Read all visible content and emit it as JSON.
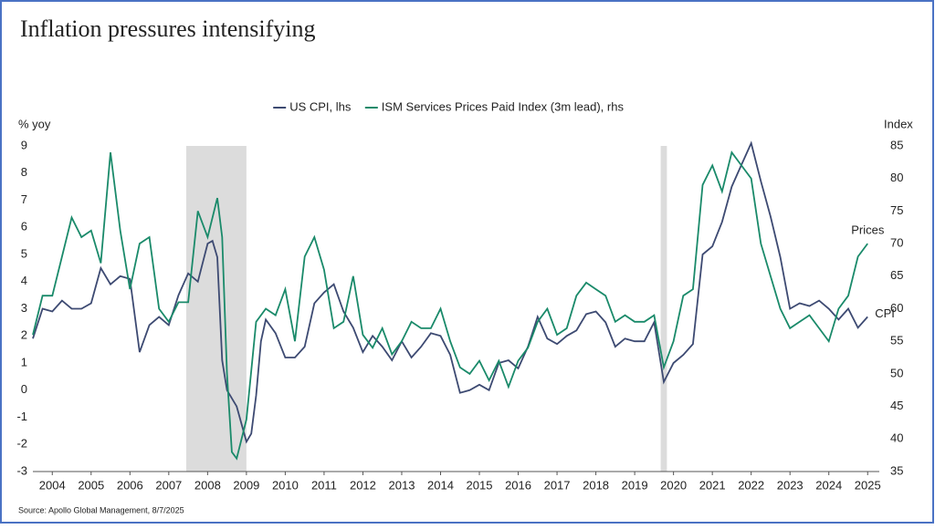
{
  "chart_data": {
    "type": "line",
    "title": "Inflation pressures intensifying",
    "legend": "top",
    "y_label": "% yoy",
    "y2_label": "Index",
    "source": "Source: Apollo Global Management, 8/7/2025",
    "annotations": [
      {
        "text": "Prices",
        "series": 1
      },
      {
        "text": "CPI",
        "series": 0
      }
    ],
    "shaded_periods": [
      [
        2007.95,
        2009.5
      ],
      [
        2020.17,
        2020.33
      ]
    ],
    "xlim": [
      2004,
      2025.8
    ],
    "xticks": [
      {
        "value": 2004.5,
        "label": "2004"
      },
      {
        "value": 2005.5,
        "label": "2005"
      },
      {
        "value": 2006.5,
        "label": "2006"
      },
      {
        "value": 2007.5,
        "label": "2007"
      },
      {
        "value": 2008.5,
        "label": "2008"
      },
      {
        "value": 2009.5,
        "label": "2009"
      },
      {
        "value": 2010.5,
        "label": "2010"
      },
      {
        "value": 2011.5,
        "label": "2011"
      },
      {
        "value": 2012.5,
        "label": "2012"
      },
      {
        "value": 2013.5,
        "label": "2013"
      },
      {
        "value": 2014.5,
        "label": "2014"
      },
      {
        "value": 2015.5,
        "label": "2015"
      },
      {
        "value": 2016.5,
        "label": "2016"
      },
      {
        "value": 2017.5,
        "label": "2017"
      },
      {
        "value": 2018.5,
        "label": "2018"
      },
      {
        "value": 2019.5,
        "label": "2019"
      },
      {
        "value": 2020.5,
        "label": "2020"
      },
      {
        "value": 2021.5,
        "label": "2021"
      },
      {
        "value": 2022.5,
        "label": "2022"
      },
      {
        "value": 2023.5,
        "label": "2023"
      },
      {
        "value": 2024.5,
        "label": "2024"
      },
      {
        "value": 2025.5,
        "label": "2025"
      }
    ],
    "ylim": [
      -3,
      9
    ],
    "yticks": [
      -3,
      -2,
      -1,
      0,
      1,
      2,
      3,
      4,
      5,
      6,
      7,
      8,
      9
    ],
    "y2lim": [
      35,
      85
    ],
    "y2ticks": [
      35,
      40,
      45,
      50,
      55,
      60,
      65,
      70,
      75,
      80,
      85
    ],
    "series": [
      {
        "name": "US CPI, lhs",
        "color": "#3d4a72",
        "x": [
          2004,
          2004.25,
          2004.5,
          2004.75,
          2005,
          2005.25,
          2005.5,
          2005.75,
          2006,
          2006.25,
          2006.5,
          2006.75,
          2007,
          2007.25,
          2007.5,
          2007.75,
          2008,
          2008.25,
          2008.5,
          2008.625,
          2008.75,
          2008.875,
          2009,
          2009.25,
          2009.5,
          2009.625,
          2009.75,
          2009.875,
          2010,
          2010.25,
          2010.5,
          2010.75,
          2011,
          2011.25,
          2011.5,
          2011.75,
          2012,
          2012.25,
          2012.5,
          2012.75,
          2013,
          2013.25,
          2013.5,
          2013.75,
          2014,
          2014.25,
          2014.5,
          2014.75,
          2015,
          2015.25,
          2015.5,
          2015.75,
          2016,
          2016.25,
          2016.5,
          2016.75,
          2017,
          2017.25,
          2017.5,
          2017.75,
          2018,
          2018.25,
          2018.5,
          2018.75,
          2019,
          2019.25,
          2019.5,
          2019.75,
          2020,
          2020.25,
          2020.5,
          2020.75,
          2021,
          2021.25,
          2021.5,
          2021.75,
          2022,
          2022.25,
          2022.5,
          2022.75,
          2023,
          2023.25,
          2023.5,
          2023.75,
          2024,
          2024.25,
          2024.5,
          2024.75,
          2025,
          2025.25,
          2025.5
        ],
        "values": [
          1.9,
          3.0,
          2.9,
          3.3,
          3.0,
          3.0,
          3.2,
          4.5,
          3.9,
          4.2,
          4.1,
          1.4,
          2.4,
          2.7,
          2.4,
          3.5,
          4.3,
          4.0,
          5.4,
          5.5,
          4.9,
          1.1,
          0.0,
          -0.6,
          -1.9,
          -1.6,
          -0.2,
          1.8,
          2.6,
          2.1,
          1.2,
          1.2,
          1.6,
          3.2,
          3.6,
          3.9,
          2.9,
          2.3,
          1.4,
          2.0,
          1.6,
          1.1,
          1.8,
          1.2,
          1.6,
          2.1,
          2.0,
          1.3,
          -0.1,
          0.0,
          0.2,
          0.0,
          1.0,
          1.1,
          0.8,
          1.6,
          2.7,
          1.9,
          1.7,
          2.0,
          2.2,
          2.8,
          2.9,
          2.5,
          1.6,
          1.9,
          1.8,
          1.8,
          2.5,
          0.3,
          1.0,
          1.3,
          1.7,
          5.0,
          5.3,
          6.2,
          7.5,
          8.3,
          9.1,
          7.7,
          6.4,
          4.9,
          3.0,
          3.2,
          3.1,
          3.3,
          3.0,
          2.6,
          3.0,
          2.3,
          2.7
        ]
      },
      {
        "name": "ISM Services Prices Paid Index (3m lead), rhs",
        "color": "#1a8a6a",
        "axis": "y2",
        "x": [
          2004,
          2004.25,
          2004.5,
          2004.75,
          2005,
          2005.25,
          2005.5,
          2005.75,
          2006,
          2006.25,
          2006.5,
          2006.75,
          2007,
          2007.25,
          2007.5,
          2007.75,
          2008,
          2008.25,
          2008.5,
          2008.75,
          2008.875,
          2009,
          2009.125,
          2009.25,
          2009.5,
          2009.75,
          2010,
          2010.25,
          2010.5,
          2010.75,
          2011,
          2011.25,
          2011.5,
          2011.75,
          2012,
          2012.25,
          2012.5,
          2012.75,
          2013,
          2013.25,
          2013.5,
          2013.75,
          2014,
          2014.25,
          2014.5,
          2014.75,
          2015,
          2015.25,
          2015.5,
          2015.75,
          2016,
          2016.25,
          2016.5,
          2016.75,
          2017,
          2017.25,
          2017.5,
          2017.75,
          2018,
          2018.25,
          2018.5,
          2018.75,
          2019,
          2019.25,
          2019.5,
          2019.75,
          2020,
          2020.25,
          2020.5,
          2020.75,
          2021,
          2021.25,
          2021.5,
          2021.75,
          2022,
          2022.25,
          2022.5,
          2022.75,
          2023,
          2023.25,
          2023.5,
          2023.75,
          2024,
          2024.25,
          2024.5,
          2024.75,
          2025,
          2025.25,
          2025.5
        ],
        "values": [
          56,
          62,
          62,
          68,
          74,
          71,
          72,
          67,
          84,
          72,
          63,
          70,
          71,
          60,
          58,
          61,
          61,
          75,
          71,
          77,
          71,
          50,
          38,
          37,
          43,
          58,
          60,
          59,
          63,
          55,
          68,
          71,
          66,
          57,
          58,
          65,
          56,
          54,
          57,
          53,
          55,
          58,
          57,
          57,
          60,
          55,
          51,
          50,
          52,
          49,
          52,
          48,
          52,
          54,
          58,
          60,
          56,
          57,
          62,
          64,
          63,
          62,
          58,
          59,
          58,
          58,
          59,
          51,
          55,
          62,
          63,
          79,
          82,
          78,
          84,
          82,
          80,
          70,
          65,
          60,
          57,
          58,
          59,
          57,
          55,
          60,
          62,
          68,
          70
        ]
      }
    ]
  }
}
